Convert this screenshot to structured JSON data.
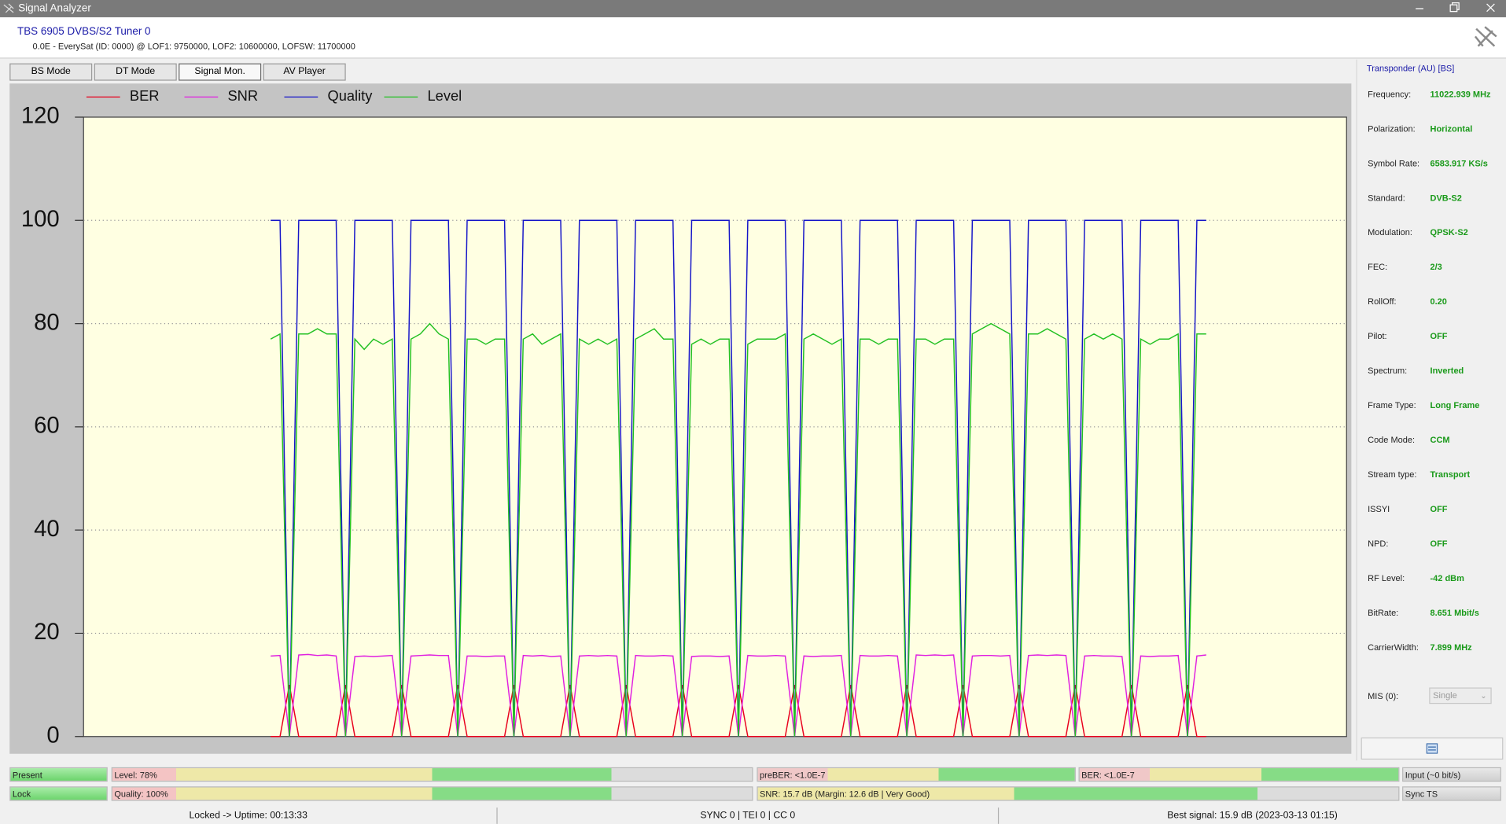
{
  "window": {
    "title": "Signal Analyzer"
  },
  "header": {
    "device": "TBS 6905 DVBS/S2 Tuner 0",
    "info": "0.0E - EverySat (ID: 0000) @ LOF1: 9750000, LOF2: 10600000, LOFSW: 11700000"
  },
  "tabs": [
    "BS Mode",
    "DT Mode",
    "Signal Mon.",
    "AV Player"
  ],
  "chart_data": {
    "type": "line",
    "ylim": [
      0,
      120
    ],
    "yticks": [
      0,
      20,
      40,
      60,
      80,
      100,
      120
    ],
    "grid": true,
    "series": [
      {
        "name": "BER",
        "color": "#e8001c",
        "values": [
          null,
          null,
          null,
          null,
          null,
          null,
          null,
          null,
          null,
          null,
          null,
          null,
          null,
          null,
          null,
          null,
          null,
          null,
          null,
          null,
          0,
          0,
          10,
          0,
          0,
          0,
          0,
          0,
          10,
          0,
          0,
          0,
          0,
          0,
          10,
          0,
          0,
          0,
          0,
          0,
          10,
          0,
          0,
          0,
          0,
          0,
          10,
          0,
          0,
          0,
          0,
          0,
          10,
          0,
          0,
          0,
          0,
          0,
          10,
          0,
          0,
          0,
          0,
          0,
          10,
          0,
          0,
          0,
          0,
          0,
          10,
          0,
          0,
          0,
          0,
          0,
          10,
          0,
          0,
          0,
          0,
          0,
          10,
          0,
          0,
          0,
          0,
          0,
          10,
          0,
          0,
          0,
          0,
          0,
          10,
          0,
          0,
          0,
          0,
          0,
          10,
          0,
          0,
          0,
          0,
          0,
          10,
          0,
          0,
          0,
          0,
          0,
          10,
          0,
          0,
          0,
          0,
          0,
          10,
          0,
          0,
          null,
          null,
          null,
          null,
          null,
          null,
          null,
          null,
          null,
          null,
          null,
          null,
          null,
          null,
          null
        ]
      },
      {
        "name": "SNR",
        "color": "#e020e0",
        "values": [
          null,
          null,
          null,
          null,
          null,
          null,
          null,
          null,
          null,
          null,
          null,
          null,
          null,
          null,
          null,
          null,
          null,
          null,
          null,
          null,
          15.6,
          15.7,
          0,
          15.8,
          15.9,
          15.7,
          15.8,
          15.6,
          0,
          15.5,
          15.6,
          15.5,
          15.6,
          15.7,
          0,
          15.6,
          15.7,
          15.8,
          15.7,
          15.7,
          0,
          15.6,
          15.6,
          15.5,
          15.6,
          15.6,
          0,
          15.7,
          15.6,
          15.7,
          15.5,
          15.6,
          0,
          15.6,
          15.7,
          15.6,
          15.7,
          15.6,
          0,
          15.7,
          15.6,
          15.6,
          15.7,
          15.6,
          0,
          15.5,
          15.6,
          15.6,
          15.5,
          15.6,
          0,
          15.7,
          15.6,
          15.6,
          15.7,
          15.6,
          0,
          15.6,
          15.5,
          15.6,
          15.6,
          15.7,
          0,
          15.7,
          15.6,
          15.6,
          15.7,
          15.6,
          0,
          15.8,
          15.7,
          15.8,
          15.7,
          15.8,
          0,
          15.6,
          15.7,
          15.7,
          15.6,
          15.7,
          0,
          15.7,
          15.8,
          15.7,
          15.8,
          15.7,
          0,
          15.6,
          15.7,
          15.6,
          15.6,
          15.5,
          0,
          15.6,
          15.5,
          15.6,
          15.6,
          15.7,
          0,
          15.6,
          15.8,
          null,
          null,
          null,
          null,
          null,
          null,
          null,
          null,
          null,
          null,
          null,
          null,
          null,
          null,
          null
        ]
      },
      {
        "name": "Quality",
        "color": "#1414c8",
        "values": [
          null,
          null,
          null,
          null,
          null,
          null,
          null,
          null,
          null,
          null,
          null,
          null,
          null,
          null,
          null,
          null,
          null,
          null,
          null,
          null,
          100,
          100,
          0,
          100,
          100,
          100,
          100,
          100,
          0,
          100,
          100,
          100,
          100,
          100,
          0,
          100,
          100,
          100,
          100,
          100,
          0,
          100,
          100,
          100,
          100,
          100,
          0,
          100,
          100,
          100,
          100,
          100,
          0,
          100,
          100,
          100,
          100,
          100,
          0,
          100,
          100,
          100,
          100,
          100,
          0,
          100,
          100,
          100,
          100,
          100,
          0,
          100,
          100,
          100,
          100,
          100,
          0,
          100,
          100,
          100,
          100,
          100,
          0,
          100,
          100,
          100,
          100,
          100,
          0,
          100,
          100,
          100,
          100,
          100,
          0,
          100,
          100,
          100,
          100,
          100,
          0,
          100,
          100,
          100,
          100,
          100,
          0,
          100,
          100,
          100,
          100,
          100,
          0,
          100,
          100,
          100,
          100,
          100,
          0,
          100,
          100,
          null,
          null,
          null,
          null,
          null,
          null,
          null,
          null,
          null,
          null,
          null,
          null,
          null,
          null,
          null
        ]
      },
      {
        "name": "Level",
        "color": "#22c022",
        "values": [
          null,
          null,
          null,
          null,
          null,
          null,
          null,
          null,
          null,
          null,
          null,
          null,
          null,
          null,
          null,
          null,
          null,
          null,
          null,
          null,
          77,
          78,
          0,
          78,
          78,
          79,
          78,
          78,
          0,
          77,
          75,
          77,
          76,
          77,
          0,
          77,
          78,
          80,
          78,
          77,
          0,
          77,
          77,
          76,
          77,
          77,
          0,
          77,
          78,
          76,
          77,
          78,
          0,
          77,
          76,
          77,
          76,
          77,
          0,
          77,
          78,
          79,
          77,
          77,
          0,
          76,
          77,
          76,
          77,
          77,
          0,
          76,
          77,
          77,
          77,
          78,
          0,
          77,
          78,
          77,
          76,
          77,
          0,
          77,
          77,
          76,
          77,
          77,
          0,
          77,
          77,
          76,
          77,
          77,
          0,
          78,
          79,
          80,
          79,
          78,
          0,
          78,
          78,
          79,
          78,
          77,
          0,
          77,
          78,
          77,
          78,
          77,
          0,
          77,
          76,
          77,
          77,
          78,
          0,
          78,
          78,
          null,
          null,
          null,
          null,
          null,
          null,
          null,
          null,
          null,
          null,
          null,
          null,
          null,
          null,
          null
        ]
      }
    ]
  },
  "transponder": {
    "title": "Transponder (AU) [BS]",
    "rows": [
      [
        "Frequency:",
        "11022.939 MHz"
      ],
      [
        "Polarization:",
        "Horizontal"
      ],
      [
        "Symbol Rate:",
        "6583.917 KS/s"
      ],
      [
        "Standard:",
        "DVB-S2"
      ],
      [
        "Modulation:",
        "QPSK-S2"
      ],
      [
        "FEC:",
        "2/3"
      ],
      [
        "RollOff:",
        "0.20"
      ],
      [
        "Pilot:",
        "OFF"
      ],
      [
        "Spectrum:",
        "Inverted"
      ],
      [
        "Frame Type:",
        "Long Frame"
      ],
      [
        "Code Mode:",
        "CCM"
      ],
      [
        "Stream type:",
        "Transport"
      ],
      [
        "ISSYI",
        "OFF"
      ],
      [
        "NPD:",
        "OFF"
      ],
      [
        "RF Level:",
        "-42 dBm"
      ],
      [
        "BitRate:",
        "8.651 Mbit/s"
      ],
      [
        "CarrierWidth:",
        "7.899 MHz"
      ]
    ],
    "mis_label": "MIS (0):",
    "mis_value": "Single"
  },
  "status": {
    "present": "Present",
    "level": "Level: 78%",
    "preber": "preBER: <1.0E-7",
    "ber": "BER: <1.0E-7",
    "input": "Input (~0 bit/s)",
    "lock": "Lock",
    "quality": "Quality: 100%",
    "snr": "SNR: 15.7 dB (Margin: 12.6 dB | Very Good)",
    "sync": "Sync TS"
  },
  "footer": [
    "Locked -> Uptime: 00:13:33",
    "SYNC 0 | TEI 0 | CC 0",
    "Best signal: 15.9 dB (2023-03-13 01:15)"
  ]
}
